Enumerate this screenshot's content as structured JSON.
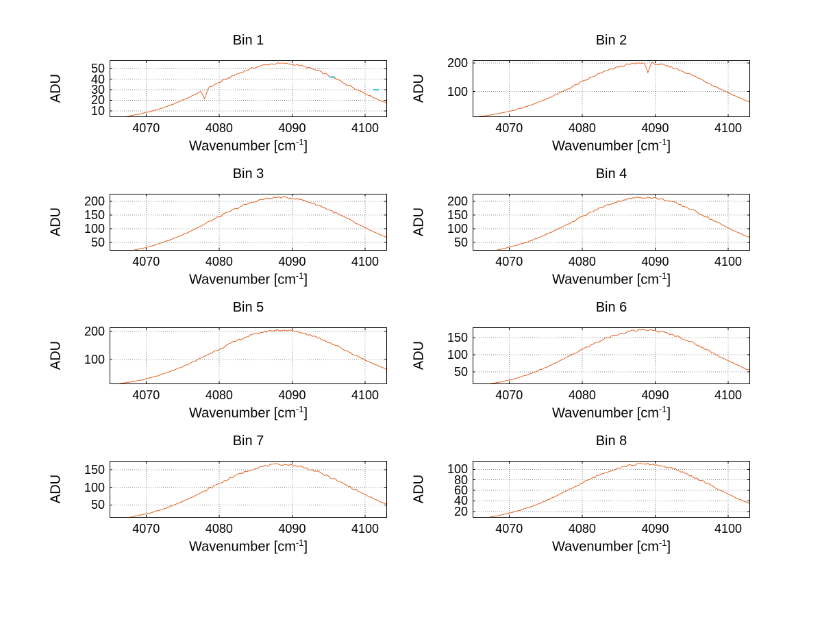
{
  "figure": {
    "background": "#ffffff",
    "line_color": "#e1601c",
    "secondary_color": "#3fc6dc",
    "grid_color": "#8c8c8c",
    "axis_color": "#000000"
  },
  "chart_data": {
    "type": "line",
    "layout": "4x2 subplots, dotted grid on, boxed axes, no legend",
    "xlabel": {
      "pre": "Wavenumber [cm",
      "sup": "-1",
      "post": "]"
    },
    "ylabel": "ADU",
    "xlim": [
      4065,
      4103
    ],
    "x_ticks": [
      4070,
      4080,
      4090,
      4100
    ],
    "x": [
      4065,
      4066,
      4067,
      4068,
      4069,
      4070,
      4071,
      4072,
      4073,
      4074,
      4075,
      4076,
      4077,
      4078,
      4079,
      4080,
      4081,
      4082,
      4083,
      4084,
      4085,
      4086,
      4087,
      4088,
      4089,
      4090,
      4091,
      4092,
      4093,
      4094,
      4095,
      4096,
      4097,
      4098,
      4099,
      4100,
      4101,
      4102,
      4103
    ],
    "profile": [
      0.047,
      0.061,
      0.077,
      0.098,
      0.122,
      0.15,
      0.183,
      0.221,
      0.264,
      0.312,
      0.364,
      0.421,
      0.481,
      0.543,
      0.607,
      0.67,
      0.732,
      0.791,
      0.846,
      0.894,
      0.934,
      0.966,
      0.988,
      0.999,
      0.999,
      0.988,
      0.966,
      0.934,
      0.894,
      0.846,
      0.791,
      0.732,
      0.67,
      0.607,
      0.543,
      0.481,
      0.421,
      0.364,
      0.312
    ],
    "series": [
      {
        "title": "Bin 1",
        "peak": 55,
        "ylim": [
          4,
          58
        ],
        "yticks": [
          10,
          20,
          30,
          40,
          50
        ],
        "dip": {
          "x": 4078,
          "frac": 0.72
        },
        "marks": [
          {
            "x": 4095.5,
            "y": 42
          },
          {
            "x": 4101.5,
            "y": 30
          }
        ]
      },
      {
        "title": "Bin 2",
        "peak": 200,
        "ylim": [
          10,
          210
        ],
        "yticks": [
          100,
          200
        ],
        "dip": {
          "x": 4089,
          "frac": 0.85
        }
      },
      {
        "title": "Bin 3",
        "peak": 215,
        "ylim": [
          20,
          228
        ],
        "yticks": [
          50,
          100,
          150,
          200
        ]
      },
      {
        "title": "Bin 4",
        "peak": 215,
        "ylim": [
          20,
          228
        ],
        "yticks": [
          50,
          100,
          150,
          200
        ]
      },
      {
        "title": "Bin 5",
        "peak": 205,
        "ylim": [
          12,
          215
        ],
        "yticks": [
          100,
          200
        ]
      },
      {
        "title": "Bin 6",
        "peak": 172,
        "ylim": [
          14,
          180
        ],
        "yticks": [
          50,
          100,
          150
        ]
      },
      {
        "title": "Bin 7",
        "peak": 165,
        "ylim": [
          14,
          175
        ],
        "yticks": [
          50,
          100,
          150
        ]
      },
      {
        "title": "Bin 8",
        "peak": 110,
        "ylim": [
          8,
          116
        ],
        "yticks": [
          20,
          40,
          60,
          80,
          100
        ]
      }
    ]
  }
}
